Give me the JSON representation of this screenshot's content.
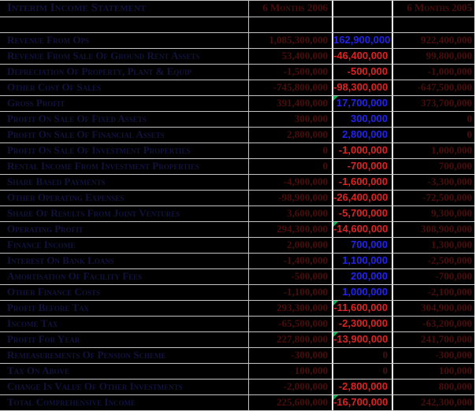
{
  "sheet": {
    "title": "Interim Income Statement",
    "headers": {
      "col2006": "6 Months 2006",
      "colChange": "",
      "col2005": "6 Months 2005"
    },
    "colors": {
      "background": "#000000",
      "gridline": "#c4c4c4",
      "label_text": "#12123e",
      "year_value_text": "#4a0d0d",
      "change_positive": "#2222ee",
      "change_negative": "#dd2222",
      "change_zero": "#3f1414",
      "indicator_green": "#00b050",
      "change_column_border": "#ffffff"
    },
    "rows": [
      {
        "label": "Revenue From Ops",
        "y2006": "1,085,300,000",
        "change": "162,900,000",
        "y2005": "922,400,000",
        "flag": false
      },
      {
        "label": "Revenue From Sale Of Ground Rent Assets",
        "y2006": "53,400,000",
        "change": "-46,400,000",
        "y2005": "99,800,000",
        "flag": false
      },
      {
        "label": "Depreciation Of Property, Plant & Equip",
        "y2006": "-1,500,000",
        "change": "-500,000",
        "y2005": "-1,000,000",
        "flag": false
      },
      {
        "label": "Other Cost Of Sales",
        "y2006": "-745,800,000",
        "change": "-98,300,000",
        "y2005": "-647,500,000",
        "flag": false
      },
      {
        "label": "Gross Profit",
        "y2006": "391,400,000",
        "change": "17,700,000",
        "y2005": "373,700,000",
        "flag": true
      },
      {
        "label": "Profit On Sale Of Fixed Assets",
        "y2006": "300,000",
        "change": "300,000",
        "y2005": "0",
        "flag": false
      },
      {
        "label": "Profit On Sale Of Financial Assets",
        "y2006": "2,800,000",
        "change": "2,800,000",
        "y2005": "0",
        "flag": false
      },
      {
        "label": "Profit On Sale Of Investment Properties",
        "y2006": "0",
        "change": "-1,000,000",
        "y2005": "1,000,000",
        "flag": false
      },
      {
        "label": "Rental Income From Investment Properties",
        "y2006": "0",
        "change": "-700,000",
        "y2005": "700,000",
        "flag": false
      },
      {
        "label": "Share Based Payments",
        "y2006": "-4,900,000",
        "change": "-1,600,000",
        "y2005": "-3,300,000",
        "flag": false
      },
      {
        "label": "Other Operating Expenses",
        "y2006": "-98,900,000",
        "change": "-26,400,000",
        "y2005": "-72,500,000",
        "flag": false
      },
      {
        "label": "Share Of Results From Joint Ventures",
        "y2006": "3,600,000",
        "change": "-5,700,000",
        "y2005": "9,300,000",
        "flag": false
      },
      {
        "label": "Operating Profit",
        "y2006": "294,300,000",
        "change": "-14,600,000",
        "y2005": "308,900,000",
        "flag": true
      },
      {
        "label": "Finance Income",
        "y2006": "2,000,000",
        "change": "700,000",
        "y2005": "1,300,000",
        "flag": false
      },
      {
        "label": "Interest On Bank Loans",
        "y2006": "-1,400,000",
        "change": "1,100,000",
        "y2005": "-2,500,000",
        "flag": false
      },
      {
        "label": "Amortisation Of Facility Fees",
        "y2006": "-500,000",
        "change": "200,000",
        "y2005": "-700,000",
        "flag": false
      },
      {
        "label": "Other Finance Costs",
        "y2006": "-1,100,000",
        "change": "1,000,000",
        "y2005": "-2,100,000",
        "flag": false
      },
      {
        "label": "Profit Before Tax",
        "y2006": "293,300,000",
        "change": "-11,600,000",
        "y2005": "304,900,000",
        "flag": true
      },
      {
        "label": "Income Tax",
        "y2006": "-65,500,000",
        "change": "-2,300,000",
        "y2005": "-63,200,000",
        "flag": false
      },
      {
        "label": "Profit For Year",
        "y2006": "227,800,000",
        "change": "-13,900,000",
        "y2005": "241,700,000",
        "flag": true
      },
      {
        "label": "Remeasurements Of Pension Scheme",
        "y2006": "-300,000",
        "change": "0",
        "y2005": "-300,000",
        "flag": false
      },
      {
        "label": "Tax On Above",
        "y2006": "100,000",
        "change": "0",
        "y2005": "100,000",
        "flag": false
      },
      {
        "label": "Change In Value Of Other Investments",
        "y2006": "-2,000,000",
        "change": "-2,800,000",
        "y2005": "800,000",
        "flag": false
      },
      {
        "label": "Total Comprehensive Income",
        "y2006": "225,600,000",
        "change": "-16,700,000",
        "y2005": "242,300,000",
        "flag": true
      }
    ]
  }
}
